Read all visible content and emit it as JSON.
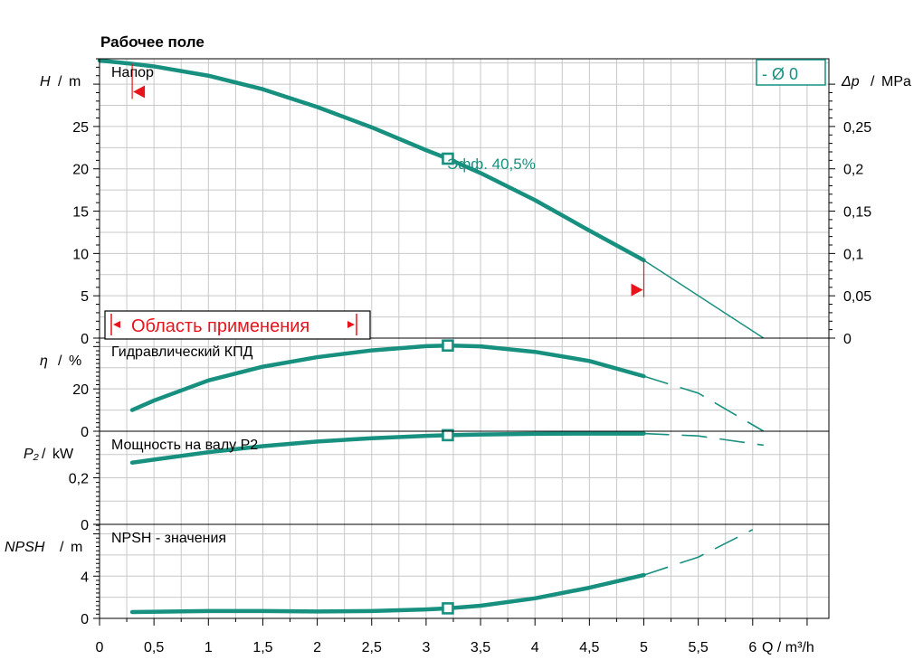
{
  "page_title": "Рабочее поле",
  "legend_label": "-   Ø 0",
  "app_range_label": "Область применения",
  "eff_label": "Эфф.  40,5%",
  "colors": {
    "curve": "#17907f",
    "marker": "#e8141c",
    "grid": "#c8c8c8",
    "axis": "#000000"
  },
  "chart_data": [
    {
      "type": "line",
      "title": "Напор",
      "ylabel_symbol": "H",
      "ylabel_unit": "m",
      "ylim": [
        0,
        33
      ],
      "yticks": [
        0,
        5,
        10,
        15,
        20,
        25
      ],
      "ytick_labels": [
        "0",
        "5",
        "10",
        "15",
        "20",
        "25"
      ],
      "right_axis": {
        "label_symbol": "Δp",
        "label_unit": "MPa",
        "ticks": [
          0,
          0.05,
          0.1,
          0.15,
          0.2,
          0.25
        ],
        "tick_labels": [
          "0",
          "0,05",
          "0,1",
          "0,15",
          "0,2",
          "0,25"
        ],
        "scale_m_per_unit": 100
      },
      "x": [
        0,
        0.3,
        0.5,
        1,
        1.5,
        2,
        2.5,
        3,
        3.2,
        3.5,
        4,
        4.5,
        5
      ],
      "values": [
        32.8,
        32.4,
        32.1,
        31.0,
        29.4,
        27.3,
        24.9,
        22.2,
        21.2,
        19.5,
        16.3,
        12.7,
        9.2
      ],
      "extension_x": [
        5,
        6.1
      ],
      "extension_values": [
        9.2,
        0
      ],
      "duty_point": {
        "x": 3.2,
        "y": 21.2
      },
      "range_markers": [
        {
          "x": 0.3,
          "y": 29.1
        },
        {
          "x": 5,
          "y": 5.7
        }
      ]
    },
    {
      "type": "line",
      "title": "Гидравлический КПД",
      "ylabel_symbol": "η",
      "ylabel_unit": "%",
      "ylim": [
        0,
        44
      ],
      "yticks": [
        0,
        20
      ],
      "ytick_labels": [
        "0",
        "20"
      ],
      "x": [
        0.3,
        0.5,
        1,
        1.5,
        2,
        2.5,
        3,
        3.2,
        3.5,
        4,
        4.5,
        5
      ],
      "values": [
        10,
        14.5,
        24,
        30.5,
        35,
        38.2,
        40.2,
        40.5,
        40.1,
        37.5,
        33.2,
        26
      ],
      "extension_x": [
        5,
        5.5,
        6.1
      ],
      "extension_values": [
        26,
        18,
        0
      ],
      "duty_point": {
        "x": 3.2,
        "y": 40.5
      }
    },
    {
      "type": "line",
      "title": "Мощность на валу P2",
      "ylabel_symbol": "P₂",
      "ylabel_unit": "kW",
      "ylim": [
        0,
        0.4
      ],
      "yticks": [
        0,
        0.2
      ],
      "ytick_labels": [
        "0",
        "0,2"
      ],
      "x": [
        0.3,
        0.5,
        1,
        1.5,
        2,
        2.5,
        3,
        3.2,
        3.5,
        4,
        4.5,
        5
      ],
      "values": [
        0.265,
        0.278,
        0.31,
        0.336,
        0.356,
        0.37,
        0.38,
        0.383,
        0.386,
        0.389,
        0.39,
        0.39
      ],
      "extension_x": [
        5,
        5.5,
        6.1
      ],
      "extension_values": [
        0.39,
        0.38,
        0.34
      ],
      "duty_point": {
        "x": 3.2,
        "y": 0.383
      }
    },
    {
      "type": "line",
      "title": "NPSH - значения",
      "ylabel_symbol": "NPSH",
      "ylabel_unit": "m",
      "ylim": [
        0,
        8.9
      ],
      "yticks": [
        0,
        4
      ],
      "ytick_labels": [
        "0",
        "4"
      ],
      "x": [
        0.3,
        1,
        1.5,
        2,
        2.5,
        3,
        3.2,
        3.5,
        4,
        4.5,
        5
      ],
      "values": [
        0.6,
        0.7,
        0.7,
        0.65,
        0.7,
        0.85,
        0.95,
        1.2,
        1.9,
        2.9,
        4.1
      ],
      "extension_x": [
        5,
        5.5,
        6
      ],
      "extension_values": [
        4.1,
        5.8,
        8.4
      ],
      "duty_point": {
        "x": 3.2,
        "y": 0.95
      }
    }
  ],
  "x_axis": {
    "label": "Q / m³/h",
    "xlim": [
      0,
      6.7
    ],
    "ticks": [
      0,
      0.5,
      1,
      1.5,
      2,
      2.5,
      3,
      3.5,
      4,
      4.5,
      5,
      5.5,
      6
    ],
    "tick_labels": [
      "0",
      "0,5",
      "1",
      "1,5",
      "2",
      "2,5",
      "3",
      "3,5",
      "4",
      "4,5",
      "5",
      "5,5",
      "6"
    ]
  }
}
